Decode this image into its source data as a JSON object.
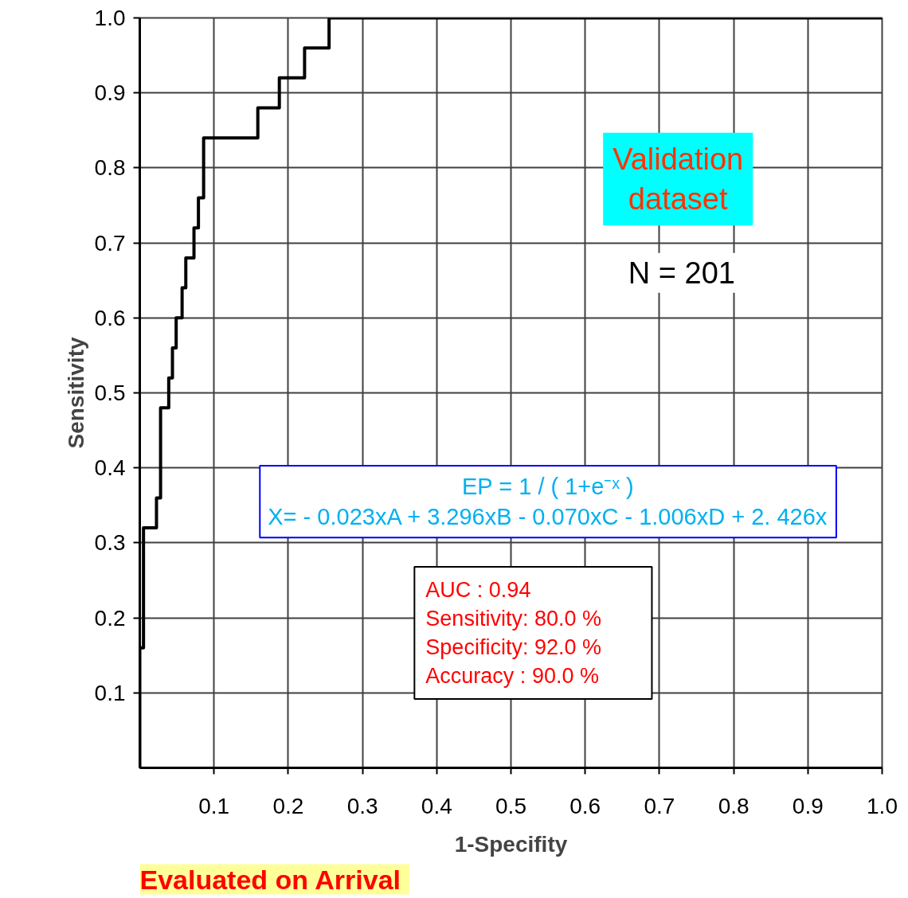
{
  "chart_data": {
    "type": "step",
    "xlabel": "1-Specifity",
    "ylabel": "Sensitivity",
    "x": [
      0,
      0,
      0.005,
      0.0225,
      0.028,
      0.039,
      0.044,
      0.049,
      0.057,
      0.062,
      0.073,
      0.079,
      0.086,
      0.159,
      0.188,
      0.222,
      0.255,
      1.0
    ],
    "series": [
      {
        "color": "#000000",
        "values": [
          0,
          0.16,
          0.32,
          0.36,
          0.48,
          0.52,
          0.56,
          0.6,
          0.64,
          0.68,
          0.72,
          0.76,
          0.84,
          0.88,
          0.92,
          0.96,
          1.0,
          1.0
        ]
      }
    ],
    "xlim": [
      0,
      1
    ],
    "ylim": [
      0,
      1
    ],
    "xticks": [
      0.1,
      0.2,
      0.3,
      0.4,
      0.5,
      0.6,
      0.7,
      0.8,
      0.9,
      {
        "value": 1,
        "label": "1.0"
      }
    ],
    "yticks": [
      0.1,
      0.2,
      0.3,
      0.4,
      0.5,
      0.6,
      0.7,
      0.8,
      0.9,
      {
        "value": 1,
        "label": "1.0"
      }
    ],
    "grid": true,
    "annotations": [
      "Validation\ndataset",
      "N = 201",
      "EP = 1 / ( 1+e⁻ˣ )\nX= - 0.023xA + 3.296xB - 0.070xC - 1.006xD + 2. 426x",
      "AUC          :          0.94\nSensitivity:      80.0  %\nSpecificity:      92.0  %\nAccuracy  :      90.0  %",
      "Evaluated on  Arrival"
    ]
  }
}
